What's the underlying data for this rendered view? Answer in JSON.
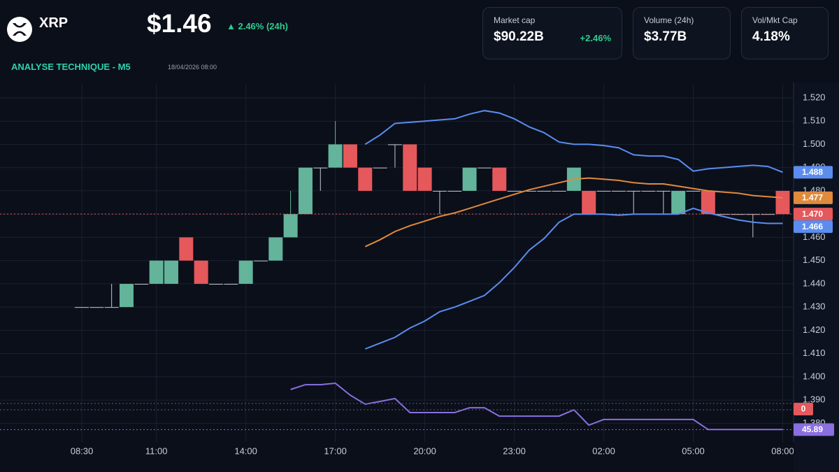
{
  "header": {
    "symbol": "XRP",
    "price": "$1.46",
    "change": "▲ 2.46% (24h)",
    "section": "ANALYSE TECHNIQUE - M5",
    "timestamp": "18/04/2026 08:00",
    "cards": [
      {
        "label": "Market cap",
        "value": "$90.22B",
        "change": "+2.46%"
      },
      {
        "label": "Volume (24h)",
        "value": "$3.77B"
      },
      {
        "label": "Vol/Mkt Cap",
        "value": "4.18%"
      }
    ]
  },
  "chart_data": {
    "type": "candlestick",
    "categories": [
      "08:30",
      null,
      null,
      null,
      null,
      "11:00",
      null,
      null,
      null,
      null,
      null,
      "14:00",
      null,
      null,
      null,
      null,
      null,
      "17:00",
      null,
      null,
      null,
      null,
      null,
      "20:00",
      null,
      null,
      null,
      null,
      null,
      "23:00",
      null,
      null,
      null,
      null,
      null,
      "02:00",
      null,
      null,
      null,
      null,
      null,
      "05:00",
      null,
      null,
      null,
      null,
      null,
      "08:00"
    ],
    "open": [
      1.43,
      1.43,
      1.43,
      1.43,
      1.44,
      1.44,
      1.44,
      1.46,
      1.45,
      1.44,
      1.44,
      1.44,
      1.45,
      1.45,
      1.46,
      1.47,
      1.49,
      1.49,
      1.5,
      1.49,
      1.49,
      1.5,
      1.5,
      1.49,
      1.48,
      1.48,
      1.48,
      1.49,
      1.49,
      1.48,
      1.48,
      1.48,
      1.48,
      1.48,
      1.48,
      1.48,
      1.48,
      1.48,
      1.48,
      1.48,
      1.47,
      1.48,
      1.48,
      1.47,
      1.47,
      1.47,
      1.47,
      1.48
    ],
    "high": [
      1.43,
      1.43,
      1.44,
      1.44,
      1.44,
      1.45,
      1.45,
      1.46,
      1.45,
      1.44,
      1.44,
      1.45,
      1.45,
      1.46,
      1.48,
      1.49,
      1.49,
      1.51,
      1.5,
      1.49,
      1.49,
      1.5,
      1.5,
      1.49,
      1.48,
      1.48,
      1.49,
      1.49,
      1.49,
      1.48,
      1.48,
      1.48,
      1.48,
      1.49,
      1.48,
      1.48,
      1.48,
      1.48,
      1.48,
      1.48,
      1.48,
      1.48,
      1.48,
      1.47,
      1.47,
      1.47,
      1.47,
      1.48
    ],
    "low": [
      1.43,
      1.43,
      1.43,
      1.43,
      1.44,
      1.44,
      1.44,
      1.45,
      1.44,
      1.44,
      1.44,
      1.44,
      1.45,
      1.45,
      1.46,
      1.47,
      1.48,
      1.49,
      1.49,
      1.48,
      1.49,
      1.49,
      1.48,
      1.48,
      1.47,
      1.48,
      1.48,
      1.49,
      1.48,
      1.48,
      1.48,
      1.48,
      1.48,
      1.48,
      1.47,
      1.48,
      1.48,
      1.47,
      1.48,
      1.47,
      1.47,
      1.48,
      1.47,
      1.47,
      1.47,
      1.46,
      1.47,
      1.47
    ],
    "close": [
      1.43,
      1.43,
      1.43,
      1.44,
      1.44,
      1.45,
      1.45,
      1.45,
      1.44,
      1.44,
      1.44,
      1.45,
      1.45,
      1.46,
      1.47,
      1.49,
      1.49,
      1.5,
      1.49,
      1.48,
      1.49,
      1.5,
      1.48,
      1.48,
      1.48,
      1.48,
      1.49,
      1.49,
      1.48,
      1.48,
      1.48,
      1.48,
      1.48,
      1.49,
      1.47,
      1.48,
      1.48,
      1.48,
      1.48,
      1.48,
      1.48,
      1.48,
      1.47,
      1.47,
      1.47,
      1.47,
      1.47,
      1.47
    ],
    "up_color": "#63b49a",
    "down_color": "#e5585b",
    "flat_color": "#c4c8d0",
    "close_badge": "1.470",
    "series": [
      {
        "color": "#5b8def",
        "badge": "1.488",
        "values": [
          null,
          null,
          null,
          null,
          null,
          null,
          null,
          null,
          null,
          null,
          null,
          null,
          null,
          null,
          null,
          null,
          null,
          null,
          null,
          1.5,
          1.504,
          1.509,
          1.5095,
          1.51,
          1.5105,
          1.511,
          1.513,
          1.5145,
          1.5135,
          1.511,
          1.5075,
          1.505,
          1.501,
          1.5,
          1.5,
          1.4995,
          1.4985,
          1.4955,
          1.495,
          1.495,
          1.4935,
          1.4885,
          1.4895,
          1.49,
          1.4905,
          1.491,
          1.4905,
          1.488
        ]
      },
      {
        "color": "#e08a3c",
        "badge": "1.477",
        "values": [
          null,
          null,
          null,
          null,
          null,
          null,
          null,
          null,
          null,
          null,
          null,
          null,
          null,
          null,
          null,
          null,
          null,
          null,
          null,
          1.456,
          1.459,
          1.4625,
          1.465,
          1.467,
          1.469,
          1.4705,
          1.4725,
          1.4745,
          1.4765,
          1.4785,
          1.4805,
          1.482,
          1.4835,
          1.485,
          1.4855,
          1.485,
          1.4845,
          1.4835,
          1.483,
          1.483,
          1.482,
          1.481,
          1.48,
          1.4795,
          1.479,
          1.478,
          1.4775,
          1.477
        ]
      },
      {
        "color": "#5b8def",
        "badge": "1.466",
        "values": [
          null,
          null,
          null,
          null,
          null,
          null,
          null,
          null,
          null,
          null,
          null,
          null,
          null,
          null,
          null,
          null,
          null,
          null,
          null,
          1.412,
          1.4145,
          1.417,
          1.421,
          1.424,
          1.428,
          1.43,
          1.4325,
          1.435,
          1.4405,
          1.447,
          1.4545,
          1.4595,
          1.4665,
          1.47,
          1.47,
          1.47,
          1.4695,
          1.47,
          1.47,
          1.47,
          1.47,
          1.4725,
          1.4705,
          1.469,
          1.4675,
          1.4665,
          1.466,
          1.466
        ]
      },
      {
        "color": "#8a6fe0",
        "axis": "y2",
        "badge": "45.89",
        "values": [
          null,
          null,
          null,
          null,
          null,
          null,
          null,
          null,
          null,
          null,
          null,
          null,
          null,
          null,
          65,
          67.3,
          67.3,
          68,
          62.3,
          58,
          59.3,
          60.7,
          54,
          54,
          54,
          54,
          56.3,
          56.3,
          52.3,
          52.3,
          52.3,
          52.3,
          52.3,
          55.3,
          48,
          50.7,
          50.7,
          50.7,
          50.7,
          50.7,
          50.7,
          50.7,
          45.9,
          45.9,
          45.9,
          45.9,
          45.9,
          45.89
        ]
      }
    ],
    "marker_label": "0",
    "ylim": [
      1.372,
      1.526
    ],
    "yticks": [
      {
        "value": 1.52,
        "label": "1.520"
      },
      {
        "value": 1.51,
        "label": "1.510"
      },
      {
        "value": 1.5,
        "label": "1.500"
      },
      {
        "value": 1.49,
        "label": "1.490"
      },
      {
        "value": 1.48,
        "label": "1.480"
      },
      {
        "value": 1.47,
        "label": "1.470"
      },
      {
        "value": 1.46,
        "label": "1.460"
      },
      {
        "value": 1.45,
        "label": "1.450"
      },
      {
        "value": 1.44,
        "label": "1.440"
      },
      {
        "value": 1.43,
        "label": "1.430"
      },
      {
        "value": 1.42,
        "label": "1.420"
      },
      {
        "value": 1.41,
        "label": "1.410"
      },
      {
        "value": 1.4,
        "label": "1.400"
      },
      {
        "value": 1.39,
        "label": "1.390"
      },
      {
        "value": 1.38,
        "label": "1.380"
      }
    ],
    "y2lim": [
      35,
      75
    ],
    "grid": true
  }
}
